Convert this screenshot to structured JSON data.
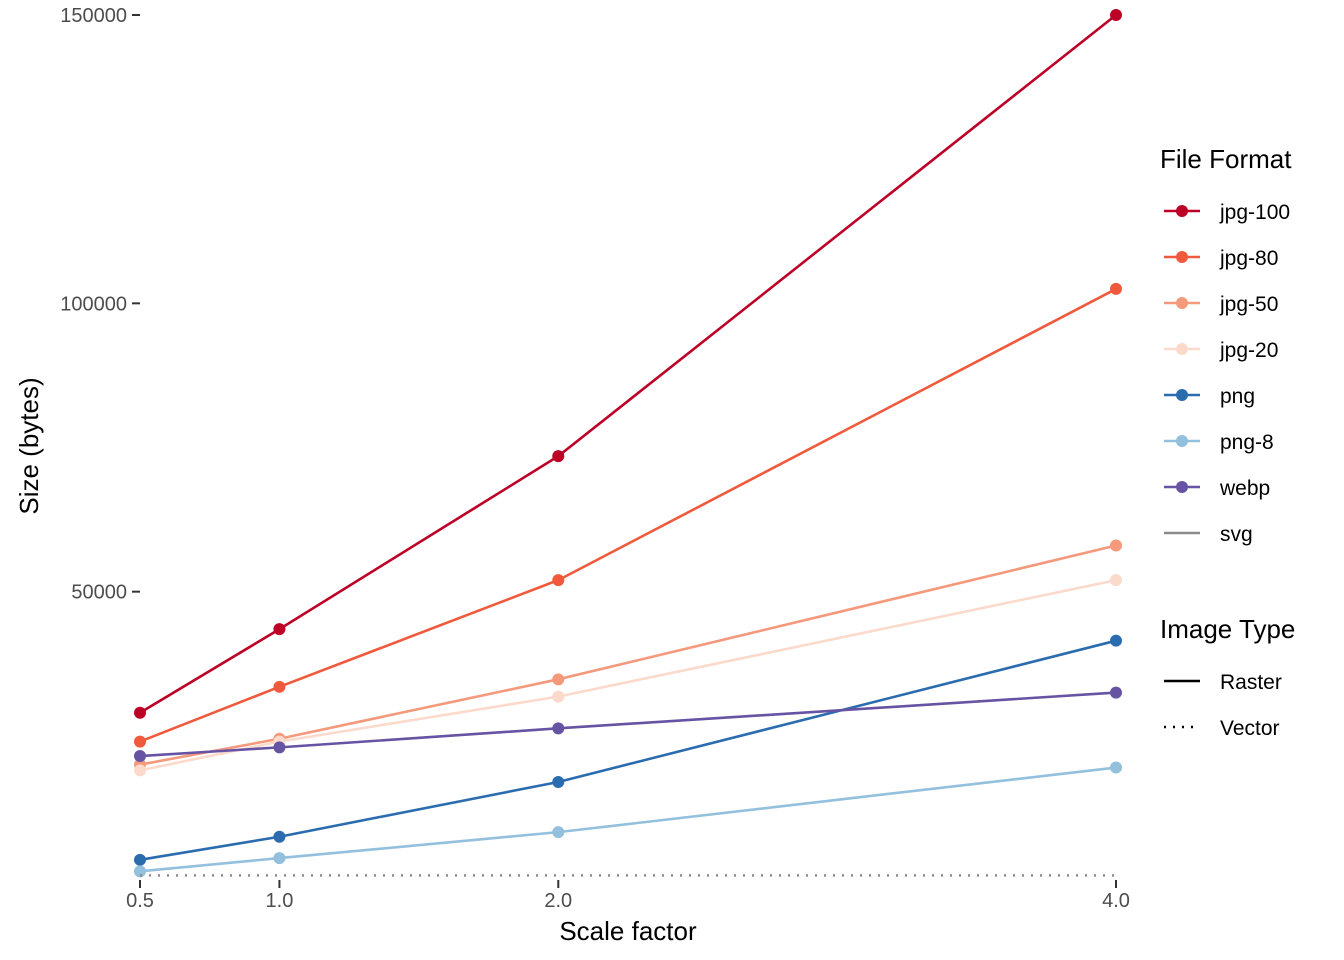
{
  "chart_data": {
    "type": "line",
    "xlabel": "Scale factor",
    "ylabel": "Size (bytes)",
    "x": [
      0.5,
      1.0,
      2.0,
      4.0
    ],
    "x_tick_labels": [
      "0.5",
      "1.0",
      "2.0",
      "4.0"
    ],
    "y_ticks": [
      50000,
      100000,
      150000
    ],
    "y_tick_labels": [
      "50000",
      "100000",
      "150000"
    ],
    "xlim": [
      0.5,
      4.0
    ],
    "ylim": [
      0,
      150000
    ],
    "grid": false,
    "legend_position": "right",
    "series": [
      {
        "name": "jpg-100",
        "color": "#bd0026",
        "linetype": "solid",
        "points": true,
        "values": [
          29000,
          43500,
          73500,
          150000
        ]
      },
      {
        "name": "jpg-80",
        "color": "#f05a3c",
        "linetype": "solid",
        "points": true,
        "values": [
          24000,
          33500,
          52000,
          102500
        ]
      },
      {
        "name": "jpg-50",
        "color": "#f4997b",
        "linetype": "solid",
        "points": true,
        "values": [
          20000,
          24500,
          34800,
          58000
        ]
      },
      {
        "name": "jpg-20",
        "color": "#fbdacb",
        "linetype": "solid",
        "points": true,
        "values": [
          19000,
          24000,
          31800,
          52000
        ]
      },
      {
        "name": "png",
        "color": "#2b6caf",
        "linetype": "solid",
        "points": true,
        "values": [
          3500,
          7500,
          17000,
          41500
        ]
      },
      {
        "name": "png-8",
        "color": "#93c0dd",
        "linetype": "solid",
        "points": true,
        "values": [
          1500,
          3800,
          8300,
          19500
        ]
      },
      {
        "name": "webp",
        "color": "#6653a3",
        "linetype": "solid",
        "points": true,
        "values": [
          21500,
          23000,
          26300,
          32500
        ]
      },
      {
        "name": "svg",
        "color": "#8c8c8c",
        "linetype": "dotted",
        "points": false,
        "values": [
          800,
          800,
          800,
          800
        ]
      }
    ],
    "legends": [
      {
        "title": "File Format",
        "items": [
          {
            "label": "jpg-100",
            "color": "#bd0026",
            "linetype": "solid",
            "point": true
          },
          {
            "label": "jpg-80",
            "color": "#f05a3c",
            "linetype": "solid",
            "point": true
          },
          {
            "label": "jpg-50",
            "color": "#f4997b",
            "linetype": "solid",
            "point": true
          },
          {
            "label": "jpg-20",
            "color": "#fbdacb",
            "linetype": "solid",
            "point": true
          },
          {
            "label": "png",
            "color": "#2b6caf",
            "linetype": "solid",
            "point": true
          },
          {
            "label": "png-8",
            "color": "#93c0dd",
            "linetype": "solid",
            "point": true
          },
          {
            "label": "webp",
            "color": "#6653a3",
            "linetype": "solid",
            "point": true
          },
          {
            "label": "svg",
            "color": "#8c8c8c",
            "linetype": "solid",
            "point": false
          }
        ]
      },
      {
        "title": "Image Type",
        "items": [
          {
            "label": "Raster",
            "color": "#000000",
            "linetype": "solid",
            "point": false
          },
          {
            "label": "Vector",
            "color": "#000000",
            "linetype": "dotted",
            "point": false
          }
        ]
      }
    ]
  }
}
